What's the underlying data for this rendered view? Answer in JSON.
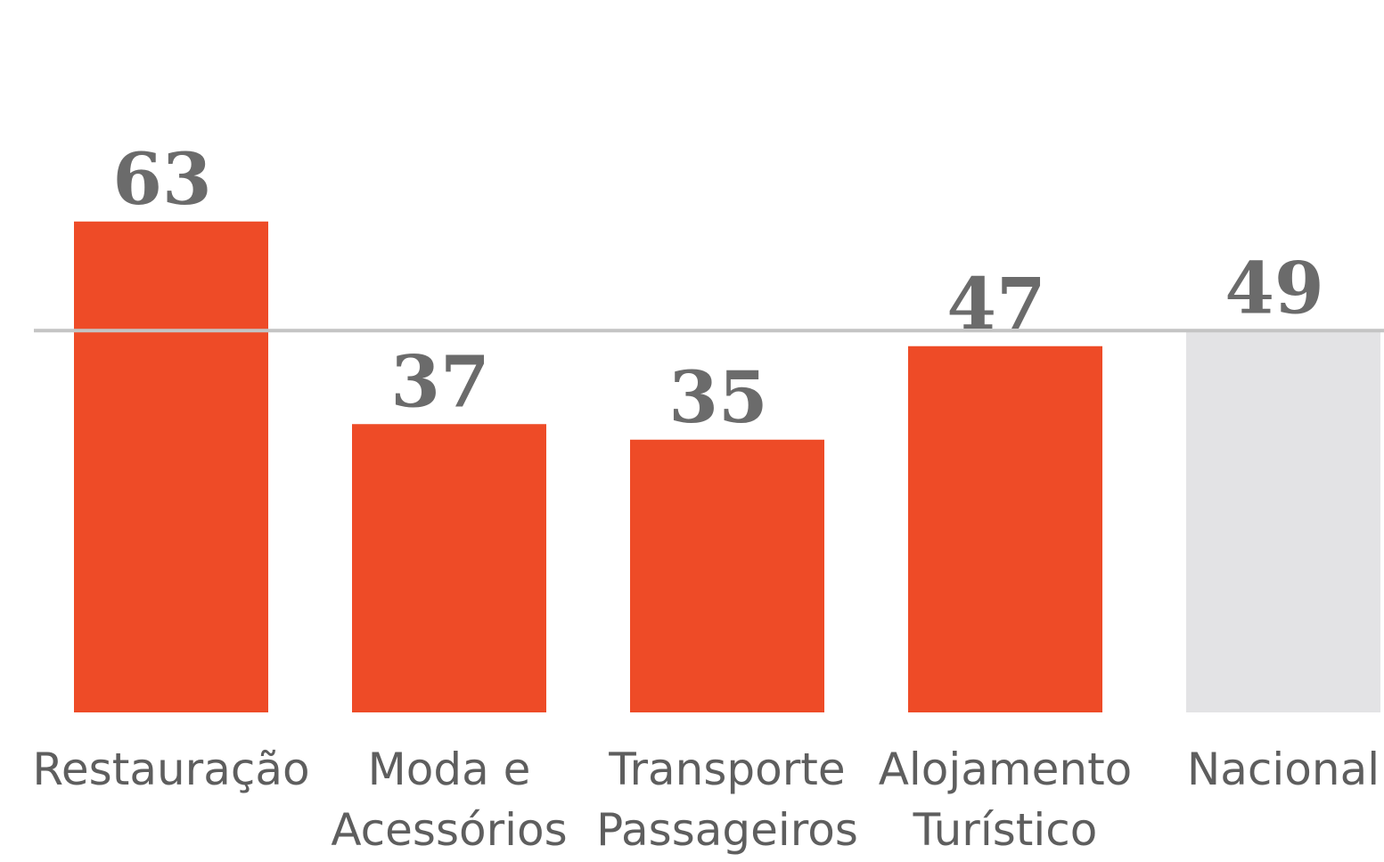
{
  "chart_data": {
    "type": "bar",
    "categories": [
      "Restauração",
      "Moda e Acessórios",
      "Transporte Passageiros",
      "Alojamento Turístico",
      "Nacional"
    ],
    "values": [
      63,
      37,
      35,
      47,
      49
    ],
    "colors": [
      "#ee4b27",
      "#ee4b27",
      "#ee4b27",
      "#ee4b27",
      "#e3e3e5"
    ],
    "reference_line": 49,
    "ylim": [
      0,
      90
    ]
  }
}
